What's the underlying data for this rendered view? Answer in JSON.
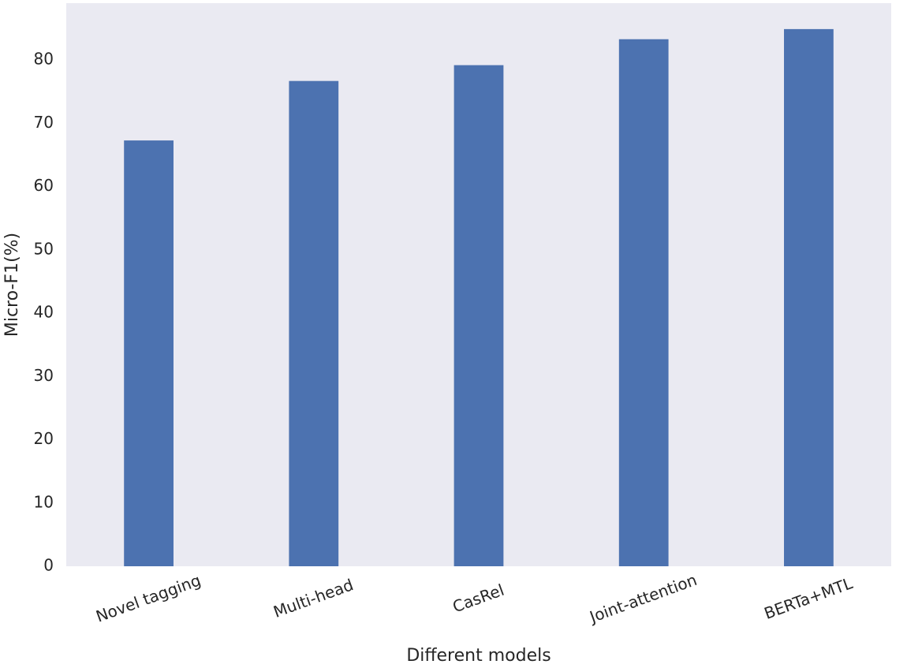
{
  "chart_data": {
    "type": "bar",
    "title": "",
    "xlabel": "Different models",
    "ylabel": "Micro-F1(%)",
    "categories": [
      "Novel tagging",
      "Multi-head",
      "CasRel",
      "Joint-attention",
      "BERTa+MTL"
    ],
    "values": [
      67.3,
      76.7,
      79.2,
      83.3,
      84.9
    ],
    "ylim": [
      0,
      89
    ],
    "yticks": [
      0,
      10,
      20,
      30,
      40,
      50,
      60,
      70,
      80
    ],
    "grid": false,
    "legend": "none",
    "bar_color": "#4c72b0",
    "background_color": "#eaeaf2"
  }
}
